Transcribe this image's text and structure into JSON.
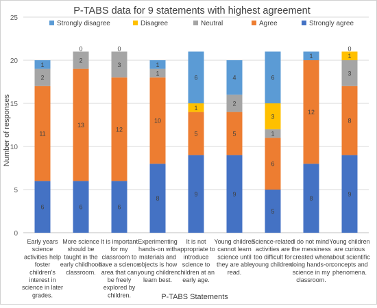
{
  "chart_data": {
    "type": "bar",
    "stacked": true,
    "title": "P-TABS data for 9 statements with highest agreement",
    "xlabel": "P-TABS Statements",
    "ylabel": "Number of responses",
    "ylim": [
      0,
      25
    ],
    "yticks": [
      0,
      5,
      10,
      15,
      20,
      25
    ],
    "grid": true,
    "legend_position": "top",
    "categories": [
      "Early years science activities help foster children's interest in science in later grades.",
      "More science should be taught in the early childhood classroom.",
      "It is important for my classroom to have a science area that can be freely explored by children.",
      "Experimenting hands-on with materials and objects is how young children learn best.",
      "It is not appropriate to introduce science to children at an early age.",
      "Young children cannot learn science until they are able read.",
      "Science-related activities are too difficult for young children.",
      "I do not mind the messiness created when doing hands-on science in my classroom.",
      "Young children are curious about scientific concepts and phenomena."
    ],
    "category_lines": [
      [
        "Early years",
        "science",
        "activities help",
        "foster",
        "children's",
        "interest in",
        "science in later",
        "grades."
      ],
      [
        "More science",
        "should be",
        "taught in the",
        "early childhood",
        "classroom."
      ],
      [
        "It is important",
        "for my",
        "classroom to",
        "have a science",
        "area that can",
        "be freely",
        "explored by",
        "children."
      ],
      [
        "Experimenting",
        "hands-on with",
        "materials and",
        "objects is how",
        "young children",
        "learn best."
      ],
      [
        "It is not",
        "appropriate to",
        "introduce",
        "science to",
        "children at an",
        "early age."
      ],
      [
        "Young children",
        "cannot learn",
        "science until",
        "they are able",
        "read."
      ],
      [
        "Science-related",
        "activities are",
        "too difficult for",
        "young children."
      ],
      [
        "I do not mind",
        "the messiness",
        "created when",
        "doing hands-on",
        "science in my",
        "classroom."
      ],
      [
        "Young children",
        "are curious",
        "about scientific",
        "concepts and",
        "phenomena."
      ]
    ],
    "series": [
      {
        "name": "Strongly agree",
        "color": "#4472C4",
        "values": [
          6,
          6,
          6,
          8,
          9,
          9,
          5,
          8,
          9
        ],
        "labels": [
          "6",
          "6",
          "6",
          "8",
          "9",
          "9",
          "5",
          "8",
          "9"
        ]
      },
      {
        "name": "Agree",
        "color": "#ED7D31",
        "values": [
          11,
          13,
          12,
          10,
          5,
          5,
          6,
          12,
          8
        ],
        "labels": [
          "11",
          "13",
          "12",
          "10",
          "5",
          "5",
          "6",
          "12",
          "8"
        ]
      },
      {
        "name": "Neutral",
        "color": "#A5A5A5",
        "values": [
          2,
          2,
          3,
          1,
          0,
          2,
          1,
          0,
          3
        ],
        "labels": [
          "2",
          "2",
          "3",
          "1",
          "0",
          "2",
          "1",
          "0",
          "3"
        ]
      },
      {
        "name": "Disagree",
        "color": "#FFC000",
        "values": [
          0,
          0,
          0,
          0,
          1,
          0,
          3,
          0,
          1
        ],
        "labels": [
          "",
          "",
          "",
          "0",
          "1",
          "",
          "3",
          "0",
          "1"
        ]
      },
      {
        "name": "Strongly disagree",
        "color": "#5B9BD5",
        "values": [
          1,
          0,
          0,
          1,
          6,
          4,
          6,
          1,
          0
        ],
        "labels": [
          "1",
          "0",
          "0",
          "1",
          "6",
          "4",
          "6",
          "1",
          "0"
        ]
      }
    ],
    "legend": [
      {
        "name": "Strongly disagree",
        "color": "#5B9BD5"
      },
      {
        "name": "Disagree",
        "color": "#FFC000"
      },
      {
        "name": "Neutral",
        "color": "#A5A5A5"
      },
      {
        "name": "Agree",
        "color": "#ED7D31"
      },
      {
        "name": "Strongly agree",
        "color": "#4472C4"
      }
    ]
  }
}
